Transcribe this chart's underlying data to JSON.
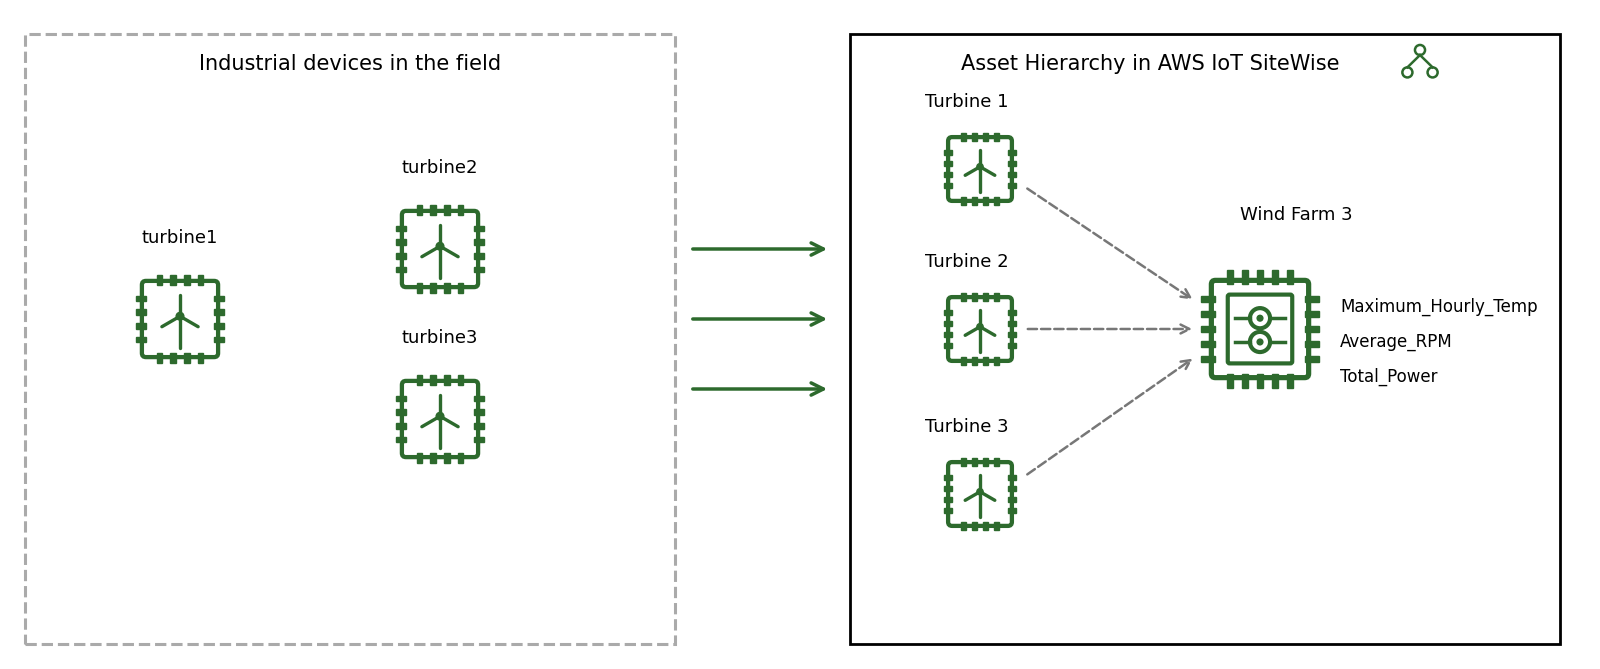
{
  "bg_color": "#ffffff",
  "green": "#2d6a2d",
  "gray": "#aaaaaa",
  "dark_gray": "#777777",
  "left_box_title": "Industrial devices in the field",
  "right_box_title": "Asset Hierarchy in AWS IoT SiteWise",
  "turbine_labels_left": [
    "turbine1",
    "turbine2",
    "turbine3"
  ],
  "turbine_labels_right": [
    "Turbine 1",
    "Turbine 2",
    "Turbine 3"
  ],
  "wind_farm_label": "Wind Farm 3",
  "properties": [
    "Maximum_Hourly_Temp",
    "Average_RPM",
    "Total_Power"
  ],
  "font_size_title": 15,
  "font_size_label": 13,
  "font_size_prop": 12
}
